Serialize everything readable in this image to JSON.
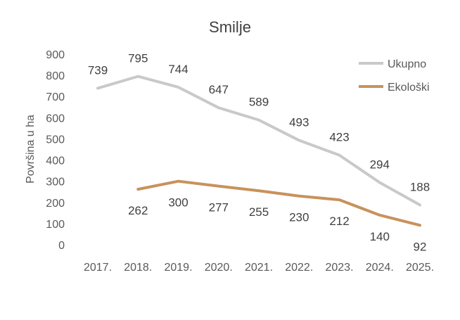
{
  "chart_data": {
    "type": "line",
    "title": "Smilje",
    "xlabel": "",
    "ylabel": "Površina u ha",
    "ylim": [
      0,
      900
    ],
    "yticks": [
      0,
      100,
      200,
      300,
      400,
      500,
      600,
      700,
      800,
      900
    ],
    "grid": false,
    "legend_position": "top-right",
    "categories": [
      "2017.",
      "2018.",
      "2019.",
      "2020.",
      "2021.",
      "2022.",
      "2023.",
      "2024.",
      "2025."
    ],
    "series": [
      {
        "name": "Ukupno",
        "color": "#c9c9c9",
        "label_pos": "above",
        "values": [
          739,
          795,
          744,
          647,
          589,
          493,
          423,
          294,
          188
        ]
      },
      {
        "name": "Ekološki",
        "color": "#c8925c",
        "label_pos": "below",
        "values": [
          null,
          262,
          300,
          277,
          255,
          230,
          212,
          140,
          92
        ]
      }
    ]
  }
}
